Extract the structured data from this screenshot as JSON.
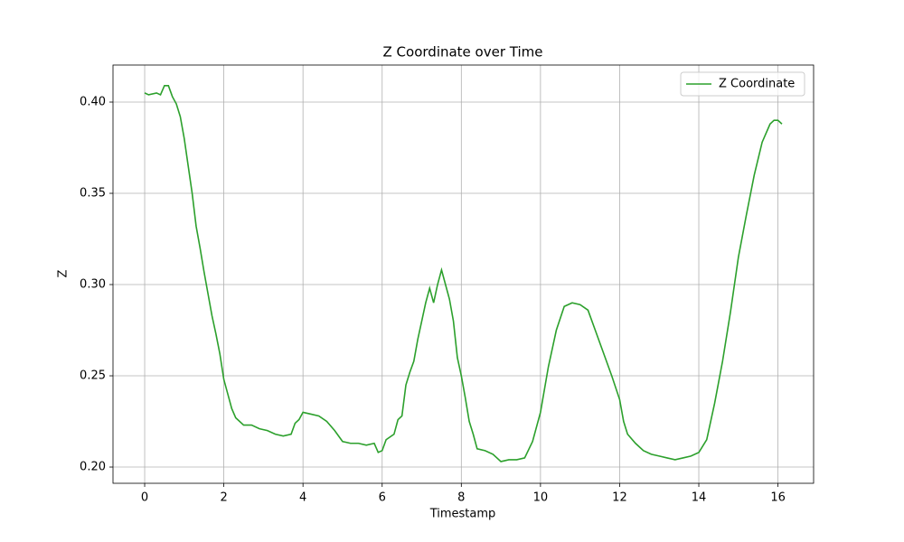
{
  "chart_data": {
    "type": "line",
    "title": "Z Coordinate over Time",
    "x_label": "Timestamp",
    "y_label": "Z",
    "x": [
      0,
      0.1,
      0.3,
      0.4,
      0.5,
      0.6,
      0.7,
      0.8,
      0.9,
      1.0,
      1.1,
      1.2,
      1.3,
      1.4,
      1.5,
      1.6,
      1.7,
      1.8,
      1.9,
      2.0,
      2.1,
      2.2,
      2.3,
      2.5,
      2.7,
      2.9,
      3.1,
      3.3,
      3.5,
      3.7,
      3.8,
      3.9,
      4.0,
      4.2,
      4.4,
      4.6,
      4.8,
      5.0,
      5.2,
      5.4,
      5.6,
      5.8,
      5.9,
      6.0,
      6.1,
      6.3,
      6.4,
      6.5,
      6.6,
      6.7,
      6.8,
      6.9,
      7.0,
      7.1,
      7.2,
      7.3,
      7.4,
      7.5,
      7.6,
      7.7,
      7.8,
      7.9,
      8.0,
      8.1,
      8.2,
      8.3,
      8.4,
      8.6,
      8.8,
      9.0,
      9.2,
      9.4,
      9.6,
      9.8,
      10.0,
      10.2,
      10.4,
      10.6,
      10.8,
      11.0,
      11.2,
      11.4,
      11.6,
      11.8,
      12.0,
      12.1,
      12.2,
      12.4,
      12.6,
      12.8,
      13.0,
      13.2,
      13.4,
      13.6,
      13.8,
      14.0,
      14.2,
      14.4,
      14.6,
      14.8,
      15.0,
      15.2,
      15.4,
      15.6,
      15.8,
      15.9,
      16.0,
      16.1
    ],
    "series": [
      {
        "name": "Z Coordinate",
        "color": "#2ca02c",
        "values": [
          0.405,
          0.404,
          0.405,
          0.404,
          0.409,
          0.409,
          0.403,
          0.399,
          0.392,
          0.38,
          0.365,
          0.35,
          0.332,
          0.32,
          0.307,
          0.295,
          0.283,
          0.273,
          0.262,
          0.248,
          0.24,
          0.232,
          0.227,
          0.223,
          0.223,
          0.221,
          0.22,
          0.218,
          0.217,
          0.218,
          0.224,
          0.226,
          0.23,
          0.229,
          0.228,
          0.225,
          0.22,
          0.214,
          0.213,
          0.213,
          0.212,
          0.213,
          0.208,
          0.209,
          0.215,
          0.218,
          0.226,
          0.228,
          0.245,
          0.252,
          0.258,
          0.27,
          0.28,
          0.29,
          0.298,
          0.29,
          0.3,
          0.308,
          0.3,
          0.292,
          0.28,
          0.26,
          0.25,
          0.238,
          0.225,
          0.218,
          0.21,
          0.209,
          0.207,
          0.203,
          0.204,
          0.204,
          0.205,
          0.214,
          0.23,
          0.255,
          0.275,
          0.288,
          0.29,
          0.289,
          0.286,
          0.274,
          0.262,
          0.25,
          0.237,
          0.225,
          0.218,
          0.213,
          0.209,
          0.207,
          0.206,
          0.205,
          0.204,
          0.205,
          0.206,
          0.208,
          0.215,
          0.235,
          0.258,
          0.285,
          0.315,
          0.338,
          0.36,
          0.378,
          0.388,
          0.39,
          0.39,
          0.388
        ]
      }
    ],
    "xlim": [
      -0.8,
      16.9
    ],
    "ylim": [
      0.1911,
      0.4203
    ],
    "xticks": [
      0,
      2,
      4,
      6,
      8,
      10,
      12,
      14,
      16
    ],
    "yticks": [
      {
        "value": 0.2,
        "label": "0.20"
      },
      {
        "value": 0.25,
        "label": "0.25"
      },
      {
        "value": 0.3,
        "label": "0.30"
      },
      {
        "value": 0.35,
        "label": "0.35"
      },
      {
        "value": 0.4,
        "label": "0.40"
      }
    ],
    "grid": true,
    "legend": "upper right"
  }
}
